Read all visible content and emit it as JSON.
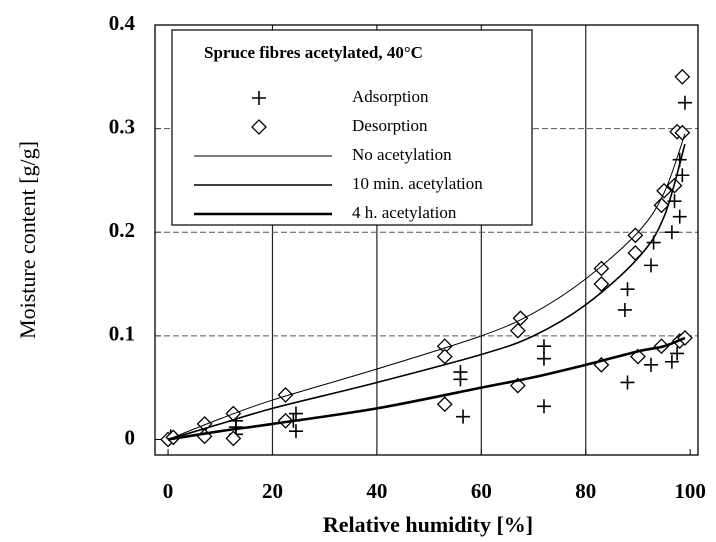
{
  "chart_data": {
    "type": "scatter-line",
    "xlabel": "Relative humidity [%]",
    "ylabel": "Moisture content [g/g]",
    "legend_title": "Spruce fibres acetylated, 40°C",
    "legend": "upper left",
    "grid": true,
    "xlim": [
      -2.5,
      101.5
    ],
    "ylim": [
      -0.015,
      0.4
    ],
    "xticks": [
      0,
      20,
      40,
      60,
      80,
      100
    ],
    "yticks": [
      0,
      0.1,
      0.2,
      0.3,
      0.4
    ],
    "series": [
      {
        "name": "Adsorption",
        "kind": "points",
        "marker": "plus",
        "color": "#000000",
        "x": [
          0.5,
          13,
          24.5,
          56,
          72,
          88,
          93,
          97,
          98,
          99,
          13,
          24,
          56,
          72,
          87.5,
          92.5,
          96.5,
          98,
          98.5,
          13,
          24.5,
          56.5,
          72,
          88,
          92.5,
          96.5,
          97.5
        ],
        "values": [
          0.003,
          0.018,
          0.025,
          0.065,
          0.09,
          0.145,
          0.19,
          0.23,
          0.27,
          0.325,
          0.012,
          0.018,
          0.058,
          0.078,
          0.125,
          0.168,
          0.2,
          0.215,
          0.255,
          0.005,
          0.008,
          0.022,
          0.032,
          0.055,
          0.072,
          0.075,
          0.083
        ]
      },
      {
        "name": "Desorption",
        "kind": "points",
        "marker": "diamond",
        "color": "#000000",
        "x": [
          0,
          1,
          7,
          7,
          12.5,
          12.5,
          22.5,
          22.5,
          53,
          53,
          53,
          67.5,
          67,
          67,
          83,
          83,
          83,
          89.5,
          89.5,
          90,
          95,
          94.5,
          94.5,
          97.5,
          97,
          98,
          98.5,
          98.5,
          99
        ],
        "values": [
          0,
          0.002,
          0.015,
          0.003,
          0.025,
          0.001,
          0.043,
          0.018,
          0.09,
          0.08,
          0.034,
          0.117,
          0.105,
          0.052,
          0.165,
          0.15,
          0.072,
          0.197,
          0.18,
          0.08,
          0.24,
          0.226,
          0.09,
          0.297,
          0.245,
          0.095,
          0.35,
          0.296,
          0.098
        ]
      },
      {
        "name": "No acetylation",
        "kind": "line",
        "line_width": 1,
        "color": "#000000",
        "x": [
          0,
          10,
          20,
          40,
          60,
          70,
          80,
          90,
          95,
          99
        ],
        "values": [
          0,
          0.02,
          0.038,
          0.068,
          0.1,
          0.122,
          0.155,
          0.2,
          0.238,
          0.295
        ]
      },
      {
        "name": "10 min. acetylation",
        "kind": "line",
        "line_width": 1.6,
        "color": "#000000",
        "x": [
          0,
          10,
          20,
          40,
          60,
          70,
          80,
          90,
          95,
          99
        ],
        "values": [
          0,
          0.015,
          0.03,
          0.055,
          0.082,
          0.1,
          0.13,
          0.175,
          0.215,
          0.285
        ]
      },
      {
        "name": "4 h. acetylation",
        "kind": "line",
        "line_width": 2.6,
        "color": "#000000",
        "x": [
          0,
          10,
          20,
          40,
          60,
          70,
          80,
          90,
          95,
          99
        ],
        "values": [
          0,
          0.008,
          0.015,
          0.03,
          0.05,
          0.06,
          0.072,
          0.085,
          0.09,
          0.098
        ]
      }
    ]
  }
}
